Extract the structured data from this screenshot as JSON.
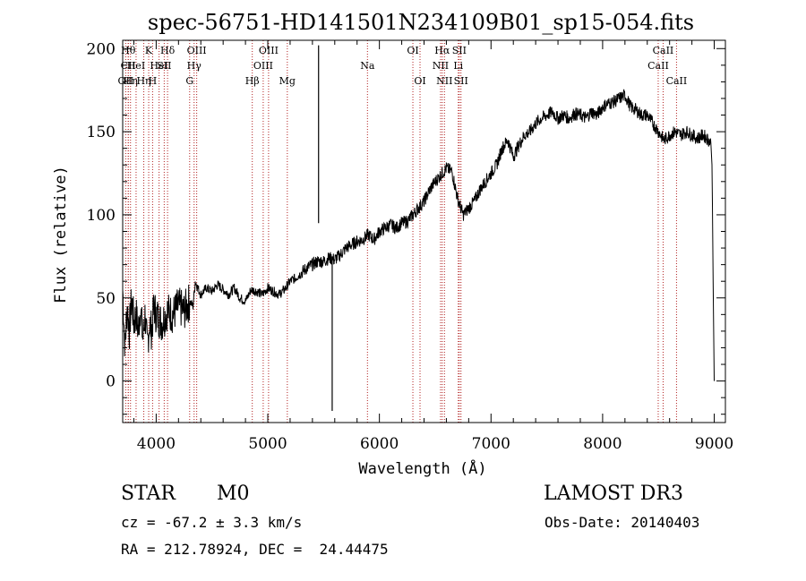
{
  "chart_data": {
    "type": "line",
    "title": "spec-56751-HD141501N234109B01_sp15-054.fits",
    "xlabel": "Wavelength (Å)",
    "ylabel": "Flux (relative)",
    "xlim": [
      3700,
      9100
    ],
    "ylim": [
      -25,
      205
    ],
    "xticks": [
      4000,
      5000,
      6000,
      7000,
      8000,
      9000
    ],
    "yticks": [
      0,
      50,
      100,
      150,
      200
    ],
    "grid": false,
    "series": [
      {
        "name": "spectrum",
        "x": [
          3700,
          3720,
          3740,
          3760,
          3780,
          3800,
          3820,
          3840,
          3860,
          3880,
          3900,
          3920,
          3940,
          3960,
          3980,
          4000,
          4050,
          4100,
          4150,
          4200,
          4250,
          4300,
          4330,
          4350,
          4380,
          4400,
          4450,
          4500,
          4550,
          4600,
          4650,
          4700,
          4750,
          4800,
          4850,
          4900,
          4950,
          5000,
          5050,
          5100,
          5150,
          5200,
          5250,
          5300,
          5350,
          5400,
          5450,
          5500,
          5550,
          5600,
          5650,
          5700,
          5750,
          5800,
          5850,
          5900,
          5950,
          6000,
          6050,
          6100,
          6150,
          6200,
          6250,
          6300,
          6350,
          6400,
          6450,
          6500,
          6550,
          6600,
          6650,
          6700,
          6750,
          6800,
          6850,
          6900,
          6950,
          7000,
          7050,
          7100,
          7150,
          7200,
          7250,
          7300,
          7350,
          7400,
          7450,
          7500,
          7550,
          7600,
          7650,
          7700,
          7750,
          7800,
          7850,
          7900,
          7950,
          8000,
          8050,
          8100,
          8150,
          8200,
          8250,
          8300,
          8350,
          8400,
          8450,
          8500,
          8550,
          8600,
          8650,
          8700,
          8750,
          8800,
          8850,
          8900,
          8950,
          8970,
          8980,
          8990,
          9000
        ],
        "y": [
          55,
          20,
          45,
          30,
          50,
          35,
          40,
          30,
          45,
          25,
          40,
          20,
          35,
          30,
          45,
          40,
          35,
          42,
          40,
          45,
          42,
          48,
          45,
          60,
          55,
          52,
          56,
          54,
          58,
          55,
          52,
          56,
          50,
          48,
          55,
          54,
          52,
          56,
          54,
          52,
          55,
          60,
          62,
          65,
          68,
          70,
          72,
          72,
          74,
          73,
          76,
          80,
          82,
          84,
          85,
          88,
          85,
          90,
          92,
          94,
          92,
          95,
          96,
          100,
          104,
          108,
          115,
          120,
          124,
          128,
          126,
          110,
          100,
          104,
          108,
          115,
          120,
          125,
          130,
          140,
          145,
          135,
          142,
          148,
          150,
          155,
          158,
          160,
          162,
          158,
          160,
          158,
          161,
          160,
          158,
          162,
          160,
          165,
          167,
          168,
          170,
          172,
          165,
          163,
          160,
          160,
          155,
          150,
          145,
          148,
          150,
          148,
          150,
          148,
          146,
          148,
          145,
          143,
          130,
          60,
          0
        ]
      }
    ],
    "spikes": [
      {
        "x": 5455,
        "y": 202
      },
      {
        "x": 5577,
        "y": -18
      }
    ],
    "line_markers": [
      {
        "x": 3727,
        "label": "OII",
        "row": 2
      },
      {
        "x": 3750,
        "label": "Hθ",
        "row": 0
      },
      {
        "x": 3750,
        "label": "CII",
        "row": 1
      },
      {
        "x": 3770,
        "label": "Hη",
        "row": 2
      },
      {
        "x": 3820,
        "label": "HeI",
        "row": 1
      },
      {
        "x": 3889,
        "label": "Hη",
        "row": 2
      },
      {
        "x": 3933,
        "label": "K",
        "row": 0
      },
      {
        "x": 3968,
        "label": "H",
        "row": 2
      },
      {
        "x": 4026,
        "label": "HeI",
        "row": 1
      },
      {
        "x": 4072,
        "label": "SII",
        "row": 1
      },
      {
        "x": 4102,
        "label": "Hδ",
        "row": 0
      },
      {
        "x": 4300,
        "label": "G",
        "row": 2
      },
      {
        "x": 4340,
        "label": "Hγ",
        "row": 1
      },
      {
        "x": 4363,
        "label": "OIII",
        "row": 0
      },
      {
        "x": 4861,
        "label": "Hβ",
        "row": 2
      },
      {
        "x": 4959,
        "label": "OIII",
        "row": 1
      },
      {
        "x": 5007,
        "label": "OIII",
        "row": 0
      },
      {
        "x": 5175,
        "label": "Mg",
        "row": 2
      },
      {
        "x": 5893,
        "label": "Na",
        "row": 1
      },
      {
        "x": 6300,
        "label": "OI",
        "row": 0
      },
      {
        "x": 6364,
        "label": "OI",
        "row": 2
      },
      {
        "x": 6548,
        "label": "NII",
        "row": 1
      },
      {
        "x": 6563,
        "label": "Hα",
        "row": 0
      },
      {
        "x": 6583,
        "label": "NII",
        "row": 2
      },
      {
        "x": 6707,
        "label": "Li",
        "row": 1
      },
      {
        "x": 6716,
        "label": "SII",
        "row": 0
      },
      {
        "x": 6731,
        "label": "SII",
        "row": 2
      },
      {
        "x": 8498,
        "label": "CaII",
        "row": 1
      },
      {
        "x": 8542,
        "label": "CaII",
        "row": 0
      },
      {
        "x": 8662,
        "label": "CaII",
        "row": 2
      }
    ],
    "colors": {
      "line": "#000000",
      "marker": "#b22222"
    }
  },
  "info": {
    "object_class": "STAR",
    "subclass": "M0",
    "survey": "LAMOST DR3",
    "velocity": "cz = -67.2 ± 3.3 km/s",
    "obs_date": "Obs-Date: 20140403",
    "coords": "RA = 212.78924, DEC =  24.44475"
  }
}
